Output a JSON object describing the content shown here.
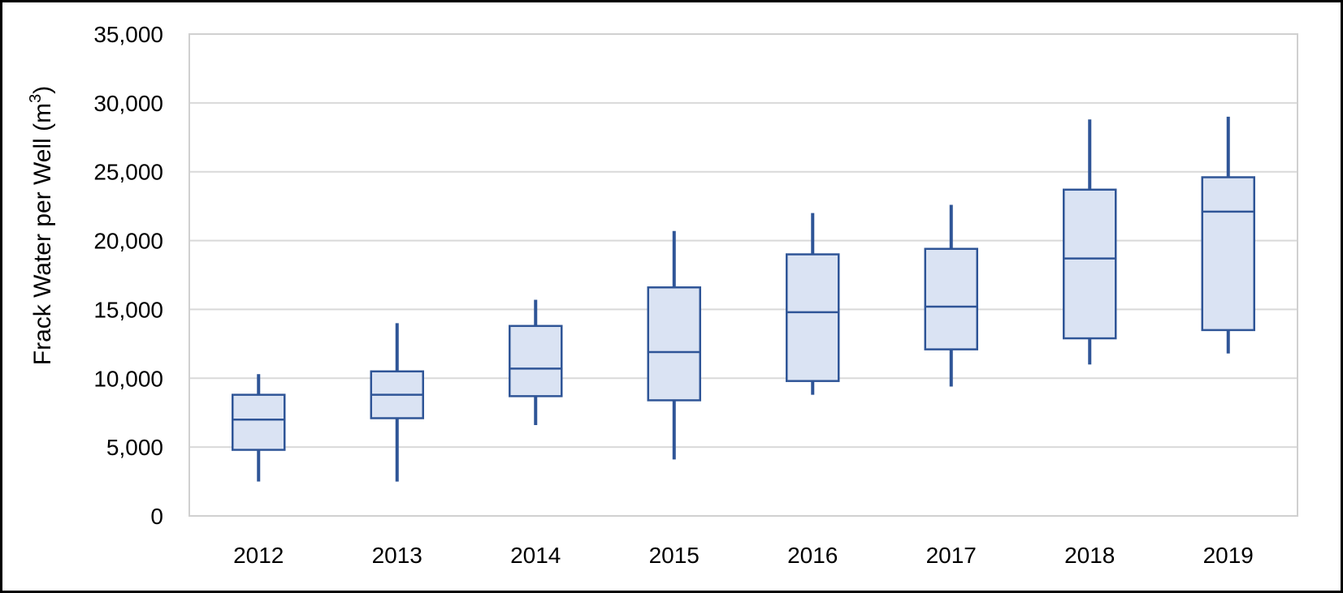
{
  "chart_data": {
    "type": "box",
    "title": "",
    "xlabel": "",
    "ylabel": {
      "text": "Frack Water per Well (m",
      "superscript": "3",
      "suffix": ")"
    },
    "ylim": [
      0,
      35000
    ],
    "y_ticks": [
      0,
      5000,
      10000,
      15000,
      20000,
      25000,
      30000,
      35000
    ],
    "y_tick_labels": [
      "0",
      "5,000",
      "10,000",
      "15,000",
      "20,000",
      "25,000",
      "30,000",
      "35,000"
    ],
    "grid": true,
    "legend": "none",
    "categories": [
      "2012",
      "2013",
      "2014",
      "2015",
      "2016",
      "2017",
      "2018",
      "2019"
    ],
    "boxes": [
      {
        "min": 2500,
        "q1": 4800,
        "median": 7000,
        "q3": 8800,
        "max": 10300
      },
      {
        "min": 2500,
        "q1": 7100,
        "median": 8800,
        "q3": 10500,
        "max": 14000
      },
      {
        "min": 6600,
        "q1": 8700,
        "median": 10700,
        "q3": 13800,
        "max": 15700
      },
      {
        "min": 4100,
        "q1": 8400,
        "median": 11900,
        "q3": 16600,
        "max": 20700
      },
      {
        "min": 8800,
        "q1": 9800,
        "median": 14800,
        "q3": 19000,
        "max": 22000
      },
      {
        "min": 9400,
        "q1": 12100,
        "median": 15200,
        "q3": 19400,
        "max": 22600
      },
      {
        "min": 11000,
        "q1": 12900,
        "median": 18700,
        "q3": 23700,
        "max": 28800
      },
      {
        "min": 11800,
        "q1": 13500,
        "median": 22100,
        "q3": 24600,
        "max": 29000
      }
    ],
    "colors": {
      "box_fill": "#dae3f3",
      "box_stroke": "#2f5597",
      "whisker": "#2f5597",
      "grid": "#d9d9d9",
      "plot_border": "#d0d0d0",
      "frame": "#000000"
    }
  }
}
